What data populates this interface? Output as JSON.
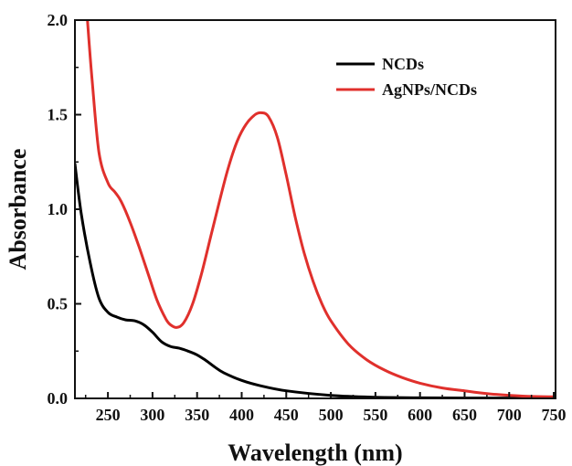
{
  "chart_data": {
    "type": "line",
    "xlabel": "Wavelength (nm)",
    "ylabel": "Absorbance",
    "xlim": [
      213,
      752
    ],
    "ylim": [
      0,
      2.0
    ],
    "x_ticks": [
      250,
      300,
      350,
      400,
      450,
      500,
      550,
      600,
      650,
      700,
      750
    ],
    "y_ticks": [
      0.0,
      0.5,
      1.0,
      1.5,
      2.0
    ],
    "y_tick_labels": [
      "0.0",
      "0.5",
      "1.0",
      "1.5",
      "2.0"
    ],
    "grid": false,
    "legend_position": "top-right",
    "series": [
      {
        "name": "NCDs",
        "color": "#000000",
        "points": [
          [
            213,
            1.24
          ],
          [
            220,
            0.98
          ],
          [
            230,
            0.72
          ],
          [
            240,
            0.53
          ],
          [
            250,
            0.455
          ],
          [
            260,
            0.43
          ],
          [
            270,
            0.415
          ],
          [
            280,
            0.41
          ],
          [
            290,
            0.39
          ],
          [
            300,
            0.35
          ],
          [
            310,
            0.3
          ],
          [
            320,
            0.275
          ],
          [
            330,
            0.265
          ],
          [
            340,
            0.25
          ],
          [
            350,
            0.23
          ],
          [
            360,
            0.2
          ],
          [
            370,
            0.165
          ],
          [
            380,
            0.135
          ],
          [
            400,
            0.095
          ],
          [
            420,
            0.068
          ],
          [
            450,
            0.04
          ],
          [
            500,
            0.016
          ],
          [
            550,
            0.006
          ],
          [
            600,
            0.003
          ],
          [
            650,
            0.002
          ],
          [
            700,
            0.002
          ],
          [
            752,
            0.002
          ]
        ]
      },
      {
        "name": "AgNPs/NCDs",
        "color": "#e0302c",
        "points": [
          [
            227,
            2.0
          ],
          [
            232,
            1.7
          ],
          [
            240,
            1.3
          ],
          [
            250,
            1.14
          ],
          [
            258,
            1.09
          ],
          [
            265,
            1.04
          ],
          [
            275,
            0.93
          ],
          [
            285,
            0.8
          ],
          [
            295,
            0.66
          ],
          [
            305,
            0.52
          ],
          [
            315,
            0.42
          ],
          [
            320,
            0.39
          ],
          [
            327,
            0.375
          ],
          [
            335,
            0.4
          ],
          [
            345,
            0.5
          ],
          [
            355,
            0.66
          ],
          [
            365,
            0.85
          ],
          [
            375,
            1.04
          ],
          [
            385,
            1.22
          ],
          [
            395,
            1.36
          ],
          [
            405,
            1.45
          ],
          [
            415,
            1.5
          ],
          [
            422,
            1.51
          ],
          [
            430,
            1.49
          ],
          [
            440,
            1.38
          ],
          [
            450,
            1.18
          ],
          [
            460,
            0.96
          ],
          [
            470,
            0.77
          ],
          [
            480,
            0.62
          ],
          [
            490,
            0.5
          ],
          [
            500,
            0.41
          ],
          [
            520,
            0.285
          ],
          [
            540,
            0.205
          ],
          [
            560,
            0.15
          ],
          [
            580,
            0.11
          ],
          [
            600,
            0.08
          ],
          [
            625,
            0.055
          ],
          [
            650,
            0.04
          ],
          [
            675,
            0.025
          ],
          [
            700,
            0.016
          ],
          [
            725,
            0.01
          ],
          [
            752,
            0.008
          ]
        ]
      }
    ]
  }
}
